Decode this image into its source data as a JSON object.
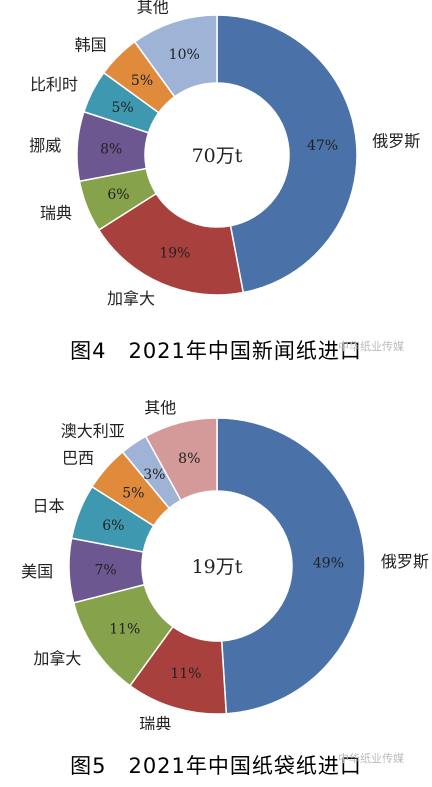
{
  "watermark": "中华纸业传媒",
  "chart_data": [
    {
      "type": "pie",
      "variant": "donut",
      "center_label": "70万t",
      "caption": "图4　2021年中国新闻纸进口",
      "slices": [
        {
          "label": "俄罗斯",
          "value": 47,
          "value_label": "47%",
          "color": "#4a72a8"
        },
        {
          "label": "加拿大",
          "value": 19,
          "value_label": "19%",
          "color": "#a8403d"
        },
        {
          "label": "瑞典",
          "value": 6,
          "value_label": "6%",
          "color": "#86a24a"
        },
        {
          "label": "挪威",
          "value": 8,
          "value_label": "8%",
          "color": "#6c5791"
        },
        {
          "label": "比利时",
          "value": 5,
          "value_label": "5%",
          "color": "#3e99b0"
        },
        {
          "label": "韩国",
          "value": 5,
          "value_label": "5%",
          "color": "#e08a3c"
        },
        {
          "label": "其他",
          "value": 10,
          "value_label": "10%",
          "color": "#9fb3d6"
        }
      ]
    },
    {
      "type": "pie",
      "variant": "donut",
      "center_label": "19万t",
      "caption": "图5　2021年中国纸袋纸进口",
      "slices": [
        {
          "label": "俄罗斯",
          "value": 49,
          "value_label": "49%",
          "color": "#4a72a8"
        },
        {
          "label": "瑞典",
          "value": 11,
          "value_label": "11%",
          "color": "#a8403d"
        },
        {
          "label": "加拿大",
          "value": 11,
          "value_label": "11%",
          "color": "#86a24a"
        },
        {
          "label": "美国",
          "value": 7,
          "value_label": "7%",
          "color": "#6c5791"
        },
        {
          "label": "日本",
          "value": 6,
          "value_label": "6%",
          "color": "#3e99b0"
        },
        {
          "label": "巴西",
          "value": 5,
          "value_label": "5%",
          "color": "#e08a3c"
        },
        {
          "label": "澳大利亚",
          "value": 3,
          "value_label": "3%",
          "color": "#9fb3d6"
        },
        {
          "label": "其他",
          "value": 8,
          "value_label": "8%",
          "color": "#d49a9a"
        }
      ]
    }
  ]
}
